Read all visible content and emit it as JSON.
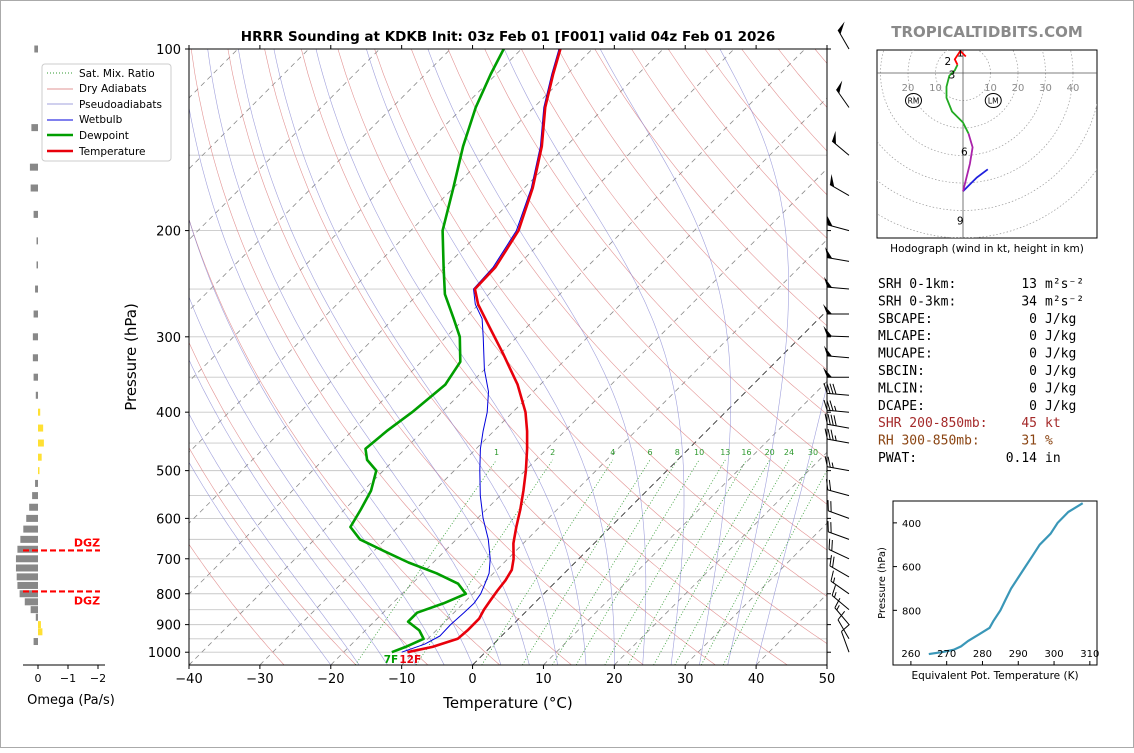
{
  "brand": "TROPICALTIDBITS.COM",
  "colors": {
    "temperature": "#e8000b",
    "dewpoint": "#009e00",
    "wetbulb": "#0000dd",
    "dry_adiabat": "#d97070",
    "moist_adiabat": "#8080d0",
    "mixing_ratio": "#2f9a2f",
    "isotherm": "#999999",
    "dgz": "#ff0000",
    "omega_up": "#ffe033",
    "omega_down": "#888888",
    "srh": "#000000",
    "shr": "#a52a2a",
    "rh": "#8b4513",
    "theta_e": "#3a97b8",
    "hodo_low": "#2020dd",
    "hodo_mid": "#aa22aa",
    "hodo_upper": "#22aa22",
    "hodo_top": "#ff0000"
  },
  "chart_data": [
    {
      "id": "skewt",
      "type": "line",
      "title": "HRRR Sounding at KDKB Init: 03z Feb 01 [F001] valid 04z Feb 01 2026",
      "xlabel": "Temperature (°C)",
      "ylabel": "Pressure (hPa)",
      "xlim": [
        -40,
        50
      ],
      "ylim": [
        1050,
        100
      ],
      "y_scale": "log",
      "skew": "isotherms slant 45°",
      "x_ticks": [
        "−40",
        "−30",
        "−20",
        "−10",
        "0",
        "10",
        "20",
        "30",
        "40",
        "50"
      ],
      "y_ticks": [
        100,
        200,
        300,
        400,
        500,
        600,
        700,
        800,
        900,
        1000
      ],
      "grid": true,
      "legend_position": "top-left",
      "legend": [
        "Sat. Mix. Ratio",
        "Dry Adiabats",
        "Pseudoadiabats",
        "Wetbulb",
        "Dewpoint",
        "Temperature"
      ],
      "mixing_ratio_labels": [
        "1",
        "2",
        "4",
        "6",
        "8",
        "10",
        "13",
        "16",
        "20",
        "24",
        "30",
        "36"
      ],
      "surface_labels": {
        "dewpoint": "7F",
        "temperature": "12F"
      },
      "series": [
        {
          "name": "Temperature",
          "points": [
            [
              1000,
              -11
            ],
            [
              980,
              -8.2
            ],
            [
              950,
              -5.8
            ],
            [
              920,
              -5.6
            ],
            [
              880,
              -5.6
            ],
            [
              850,
              -6.2
            ],
            [
              820,
              -6.6
            ],
            [
              790,
              -7.0
            ],
            [
              760,
              -7.3
            ],
            [
              730,
              -7.9
            ],
            [
              700,
              -9.2
            ],
            [
              660,
              -11.4
            ],
            [
              620,
              -13.3
            ],
            [
              580,
              -15.2
            ],
            [
              540,
              -17.4
            ],
            [
              500,
              -19.9
            ],
            [
              460,
              -22.8
            ],
            [
              430,
              -25.3
            ],
            [
              400,
              -28.2
            ],
            [
              360,
              -33.2
            ],
            [
              320,
              -39.6
            ],
            [
              290,
              -45.1
            ],
            [
              265,
              -50.1
            ],
            [
              250,
              -52.7
            ],
            [
              230,
              -52.9
            ],
            [
              200,
              -54.8
            ],
            [
              170,
              -58.8
            ],
            [
              145,
              -63.4
            ],
            [
              125,
              -68.4
            ],
            [
              110,
              -72.0
            ],
            [
              100,
              -74.5
            ]
          ]
        },
        {
          "name": "Dewpoint",
          "points": [
            [
              1000,
              -13.2
            ],
            [
              980,
              -12.0
            ],
            [
              950,
              -10.6
            ],
            [
              920,
              -12.4
            ],
            [
              890,
              -15.2
            ],
            [
              860,
              -15.2
            ],
            [
              830,
              -12.8
            ],
            [
              800,
              -11.0
            ],
            [
              770,
              -13.5
            ],
            [
              740,
              -18.0
            ],
            [
              710,
              -23.5
            ],
            [
              680,
              -28.5
            ],
            [
              650,
              -33.6
            ],
            [
              620,
              -36.7
            ],
            [
              580,
              -37.7
            ],
            [
              540,
              -38.9
            ],
            [
              500,
              -41.0
            ],
            [
              480,
              -43.8
            ],
            [
              460,
              -45.6
            ],
            [
              430,
              -45.1
            ],
            [
              400,
              -44.2
            ],
            [
              360,
              -43.4
            ],
            [
              330,
              -44.5
            ],
            [
              300,
              -48.1
            ],
            [
              280,
              -51.5
            ],
            [
              255,
              -56.2
            ],
            [
              230,
              -60.2
            ],
            [
              200,
              -65.5
            ],
            [
              170,
              -70.0
            ],
            [
              145,
              -74.5
            ],
            [
              125,
              -78.2
            ],
            [
              110,
              -80.8
            ],
            [
              100,
              -82.5
            ]
          ]
        },
        {
          "name": "Wetbulb",
          "points": [
            [
              1000,
              -11.8
            ],
            [
              970,
              -9.7
            ],
            [
              940,
              -8.7
            ],
            [
              900,
              -8.8
            ],
            [
              860,
              -8.6
            ],
            [
              830,
              -8.5
            ],
            [
              800,
              -8.9
            ],
            [
              770,
              -9.7
            ],
            [
              740,
              -10.6
            ],
            [
              700,
              -12.5
            ],
            [
              650,
              -15.5
            ],
            [
              600,
              -19.2
            ],
            [
              550,
              -22.8
            ],
            [
              500,
              -26.4
            ],
            [
              460,
              -29.4
            ],
            [
              430,
              -31.5
            ],
            [
              400,
              -33.6
            ],
            [
              370,
              -36.3
            ],
            [
              340,
              -40.0
            ],
            [
              300,
              -44.8
            ],
            [
              280,
              -47.5
            ],
            [
              265,
              -50.5
            ],
            [
              250,
              -52.9
            ],
            [
              230,
              -53.2
            ],
            [
              200,
              -55.1
            ],
            [
              170,
              -59.0
            ],
            [
              145,
              -63.6
            ],
            [
              125,
              -68.6
            ],
            [
              110,
              -72.2
            ],
            [
              100,
              -74.7
            ]
          ]
        }
      ]
    },
    {
      "id": "omega",
      "type": "bar",
      "xlabel": "Omega (Pa/s)",
      "x_ticks": [
        "0",
        "−1",
        "−2"
      ],
      "dgz_label": "DGZ",
      "dgz_levels": [
        678,
        793
      ],
      "values": [
        [
          100,
          0.25
        ],
        [
          135,
          0.45
        ],
        [
          157,
          0.55
        ],
        [
          170,
          0.5
        ],
        [
          188,
          0.3
        ],
        [
          208,
          0.1
        ],
        [
          228,
          0.1
        ],
        [
          250,
          0.2
        ],
        [
          275,
          0.3
        ],
        [
          300,
          0.35
        ],
        [
          325,
          0.35
        ],
        [
          350,
          0.3
        ],
        [
          375,
          0.15
        ],
        [
          400,
          -0.15
        ],
        [
          425,
          -0.35
        ],
        [
          450,
          -0.4
        ],
        [
          475,
          -0.25
        ],
        [
          500,
          -0.1
        ],
        [
          525,
          0.2
        ],
        [
          550,
          0.4
        ],
        [
          575,
          0.6
        ],
        [
          600,
          0.8
        ],
        [
          625,
          1.0
        ],
        [
          650,
          1.2
        ],
        [
          675,
          1.4
        ],
        [
          700,
          1.5
        ],
        [
          725,
          1.5
        ],
        [
          750,
          1.45
        ],
        [
          775,
          1.4
        ],
        [
          800,
          1.25
        ],
        [
          825,
          0.9
        ],
        [
          850,
          0.5
        ],
        [
          875,
          0.15
        ],
        [
          900,
          -0.2
        ],
        [
          925,
          -0.3
        ],
        [
          960,
          0.3
        ]
      ]
    },
    {
      "id": "hodograph",
      "type": "line",
      "xlabel": "Hodograph (wind in kt, height in km)",
      "ring_labels": [
        "20",
        "10",
        "10",
        "20",
        "30",
        "40"
      ],
      "markers": {
        "rm": "RM",
        "lm": "LM"
      },
      "height_labels": [
        "1",
        "2",
        "3",
        "6",
        "9"
      ],
      "segments": [
        {
          "name": "0-3 km",
          "points": [
            [
              9,
              -35
            ],
            [
              5,
              -38
            ],
            [
              2,
              -41
            ],
            [
              0,
              -43
            ]
          ]
        },
        {
          "name": "3-6 km",
          "points": [
            [
              0,
              -43
            ],
            [
              1,
              -39
            ],
            [
              2.5,
              -33
            ],
            [
              3.5,
              -27
            ],
            [
              2,
              -22
            ]
          ]
        },
        {
          "name": "6-9 km",
          "points": [
            [
              2,
              -22
            ],
            [
              0,
              -18
            ],
            [
              -4,
              -14
            ],
            [
              -6,
              -9
            ],
            [
              -6,
              -5
            ],
            [
              -5,
              -1
            ],
            [
              -3,
              1
            ],
            [
              -2,
              3
            ]
          ]
        },
        {
          "name": "upper",
          "points": [
            [
              -2,
              3
            ],
            [
              -3,
              5
            ],
            [
              -1,
              8
            ],
            [
              1,
              6
            ]
          ]
        }
      ]
    },
    {
      "id": "thetae",
      "type": "line",
      "xlabel": "Equivalent Pot. Temperature (K)",
      "ylabel": "Pressure (hPa)",
      "xlim": [
        255,
        312
      ],
      "ylim": [
        1050,
        300
      ],
      "x_ticks": [
        "260",
        "270",
        "280",
        "290",
        "300",
        "310"
      ],
      "y_ticks": [
        "400",
        "600",
        "800"
      ],
      "points": [
        [
          1000,
          265
        ],
        [
          990,
          269
        ],
        [
          980,
          272
        ],
        [
          965,
          274
        ],
        [
          940,
          276
        ],
        [
          910,
          279
        ],
        [
          880,
          282
        ],
        [
          850,
          283
        ],
        [
          800,
          285
        ],
        [
          750,
          286.5
        ],
        [
          700,
          288
        ],
        [
          650,
          290
        ],
        [
          600,
          292
        ],
        [
          550,
          294
        ],
        [
          500,
          296
        ],
        [
          450,
          299
        ],
        [
          400,
          301
        ],
        [
          350,
          304
        ],
        [
          310,
          308
        ]
      ]
    }
  ],
  "stats": [
    {
      "label": "SRH 0-1km:",
      "value": "13",
      "unit": "m²s⁻²",
      "style": "srh"
    },
    {
      "label": "SRH 0-3km:",
      "value": "34",
      "unit": "m²s⁻²",
      "style": "srh"
    },
    {
      "label": "SBCAPE:",
      "value": "0",
      "unit": "J/kg",
      "style": "srh"
    },
    {
      "label": "MLCAPE:",
      "value": "0",
      "unit": "J/kg",
      "style": "srh"
    },
    {
      "label": "MUCAPE:",
      "value": "0",
      "unit": "J/kg",
      "style": "srh"
    },
    {
      "label": "SBCIN:",
      "value": "0",
      "unit": "J/kg",
      "style": "srh"
    },
    {
      "label": "MLCIN:",
      "value": "0",
      "unit": "J/kg",
      "style": "srh"
    },
    {
      "label": "DCAPE:",
      "value": "0",
      "unit": "J/kg",
      "style": "srh"
    },
    {
      "label": "SHR 200-850mb:",
      "value": "45",
      "unit": "kt",
      "style": "shr"
    },
    {
      "label": "RH 300-850mb:",
      "value": "31",
      "unit": "%",
      "style": "rh"
    },
    {
      "label": "PWAT:",
      "value": "0.14",
      "unit": "in",
      "style": "srh"
    }
  ],
  "wind_barbs": [
    {
      "p": 100,
      "dir": 330,
      "kt": 50
    },
    {
      "p": 125,
      "dir": 325,
      "kt": 50
    },
    {
      "p": 150,
      "dir": 310,
      "kt": 50
    },
    {
      "p": 175,
      "dir": 300,
      "kt": 50
    },
    {
      "p": 200,
      "dir": 285,
      "kt": 50
    },
    {
      "p": 225,
      "dir": 280,
      "kt": 50
    },
    {
      "p": 250,
      "dir": 275,
      "kt": 50
    },
    {
      "p": 275,
      "dir": 270,
      "kt": 50
    },
    {
      "p": 300,
      "dir": 272,
      "kt": 50
    },
    {
      "p": 325,
      "dir": 275,
      "kt": 50
    },
    {
      "p": 350,
      "dir": 270,
      "kt": 50
    },
    {
      "p": 375,
      "dir": 275,
      "kt": 40
    },
    {
      "p": 400,
      "dir": 275,
      "kt": 35
    },
    {
      "p": 425,
      "dir": 280,
      "kt": 40
    },
    {
      "p": 450,
      "dir": 280,
      "kt": 35
    },
    {
      "p": 500,
      "dir": 280,
      "kt": 25
    },
    {
      "p": 550,
      "dir": 285,
      "kt": 20
    },
    {
      "p": 600,
      "dir": 290,
      "kt": 20
    },
    {
      "p": 650,
      "dir": 290,
      "kt": 20
    },
    {
      "p": 700,
      "dir": 295,
      "kt": 20
    },
    {
      "p": 750,
      "dir": 300,
      "kt": 20
    },
    {
      "p": 800,
      "dir": 305,
      "kt": 15
    },
    {
      "p": 850,
      "dir": 310,
      "kt": 15
    },
    {
      "p": 900,
      "dir": 320,
      "kt": 15
    },
    {
      "p": 950,
      "dir": 330,
      "kt": 10
    },
    {
      "p": 1000,
      "dir": 340,
      "kt": 10
    }
  ]
}
